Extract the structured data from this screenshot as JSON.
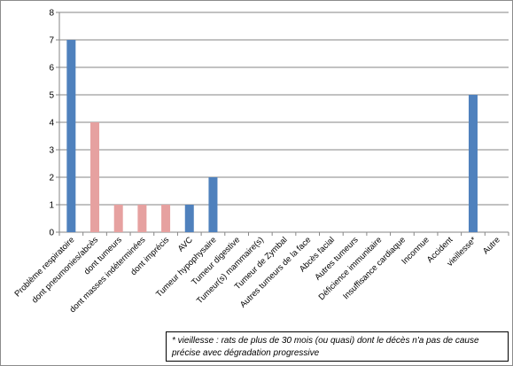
{
  "chart_data": {
    "type": "bar",
    "categories": [
      "Problème respiratoire",
      "dont pneumonies/abcès",
      "dont tumeurs",
      "dont masses indéterminées",
      "dont imprécis",
      "AVC",
      "Tumeur hypophysaire",
      "Tumeur digestive",
      "Tumeur(s) mammaire(s)",
      "Tumeur de Zymbal",
      "Autres tumeurs de la face",
      "Abcès facial",
      "Autres tumeurs",
      "Déficience immunitaire",
      "Insuffisance cardiaque",
      "Inconnue",
      "Accident",
      "vieillesse*",
      "Autre"
    ],
    "values": [
      7,
      4,
      1,
      1,
      1,
      1,
      2,
      0,
      0,
      0,
      0,
      0,
      0,
      0,
      0,
      0,
      0,
      5,
      0
    ],
    "bar_colors": [
      "#4f81bd",
      "#e6a1a0",
      "#e6a1a0",
      "#e6a1a0",
      "#e6a1a0",
      "#4f81bd",
      "#4f81bd",
      "#4f81bd",
      "#4f81bd",
      "#4f81bd",
      "#4f81bd",
      "#4f81bd",
      "#4f81bd",
      "#4f81bd",
      "#4f81bd",
      "#4f81bd",
      "#4f81bd",
      "#4f81bd",
      "#4f81bd"
    ],
    "ylim": [
      0,
      8
    ],
    "yticks": [
      0,
      1,
      2,
      3,
      4,
      5,
      6,
      7,
      8
    ],
    "grid": true,
    "title": "",
    "xlabel": "",
    "ylabel": ""
  },
  "footnote": "* vieillesse : rats de plus de 30 mois (ou quasi) dont le décès n'a pas de cause précise avec dégradation progressive"
}
